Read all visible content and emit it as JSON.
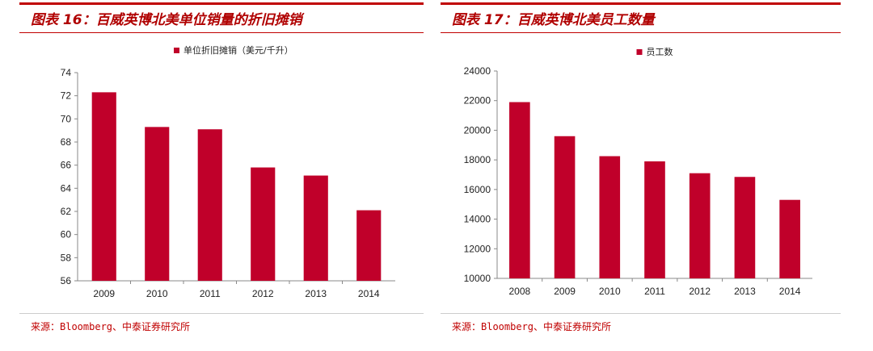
{
  "charts": [
    {
      "title": "图表 16：百威英博北美单位销量的折旧摊销",
      "source": "来源：Bloomberg、中泰证券研究所",
      "color": "#c0002a",
      "chart_data": {
        "type": "bar",
        "categories": [
          "2009",
          "2010",
          "2011",
          "2012",
          "2013",
          "2014"
        ],
        "series": [
          {
            "name": "单位折旧摊销（美元/千升）",
            "values": [
              72.3,
              69.3,
              69.1,
              65.8,
              65.1,
              62.1
            ]
          }
        ],
        "ylim": [
          56,
          74
        ],
        "yticks": [
          56,
          58,
          60,
          62,
          64,
          66,
          68,
          70,
          72,
          74
        ],
        "legend": "top-center"
      }
    },
    {
      "title": "图表 17：百威英博北美员工数量",
      "source": "来源：Bloomberg、中泰证券研究所",
      "color": "#c0002a",
      "chart_data": {
        "type": "bar",
        "categories": [
          "2008",
          "2009",
          "2010",
          "2011",
          "2012",
          "2013",
          "2014"
        ],
        "series": [
          {
            "name": "员工数",
            "values": [
              21900,
              19600,
              18250,
              17900,
              17100,
              16850,
              15300
            ]
          }
        ],
        "ylim": [
          10000,
          24000
        ],
        "yticks": [
          10000,
          12000,
          14000,
          16000,
          18000,
          20000,
          22000,
          24000
        ],
        "legend": "top-center"
      }
    }
  ]
}
